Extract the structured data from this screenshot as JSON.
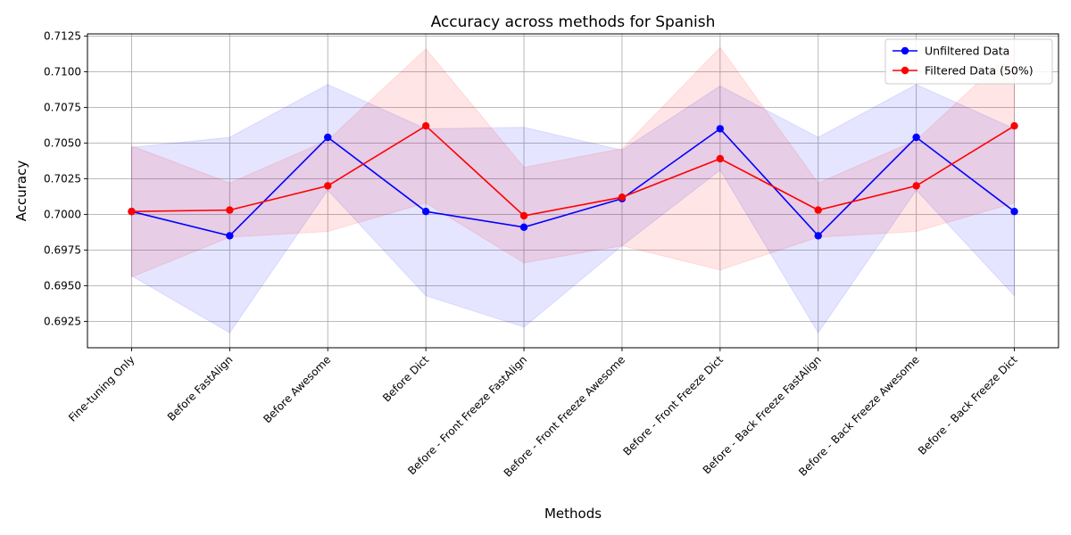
{
  "chart_data": {
    "type": "line",
    "title": "Accuracy across methods for Spanish",
    "xlabel": "Methods",
    "ylabel": "Accuracy",
    "categories": [
      "Fine-tuning Only",
      "Before FastAlign",
      "Before Awesome",
      "Before Dict",
      "Before - Front Freeze FastAlign",
      "Before - Front Freeze Awesome",
      "Before - Front Freeze Dict",
      "Before - Back Freeze FastAlign",
      "Before - Back Freeze Awesome",
      "Before - Back Freeze Dict"
    ],
    "ylim": [
      0.69065,
      0.71265
    ],
    "yticks": [
      0.6925,
      0.695,
      0.6975,
      0.7,
      0.7025,
      0.705,
      0.7075,
      0.71,
      0.7125
    ],
    "ytick_labels": [
      "0.6925",
      "0.6950",
      "0.6975",
      "0.7000",
      "0.7025",
      "0.7050",
      "0.7075",
      "0.7100",
      "0.7125"
    ],
    "grid": true,
    "legend_position": "top-right",
    "series": [
      {
        "name": "Unfiltered Data",
        "color": "#0000ff",
        "band_color": "#0000ff",
        "values": [
          0.7002,
          0.6985,
          0.7054,
          0.7002,
          0.6991,
          0.7011,
          0.706,
          0.6985,
          0.7054,
          0.7002
        ],
        "lower": [
          0.6957,
          0.6917,
          0.7017,
          0.6943,
          0.6921,
          0.6978,
          0.7031,
          0.6917,
          0.7017,
          0.6943
        ],
        "upper": [
          0.7047,
          0.7054,
          0.7091,
          0.706,
          0.7061,
          0.7045,
          0.709,
          0.7054,
          0.7091,
          0.706
        ]
      },
      {
        "name": "Filtered Data (50%)",
        "color": "#ff0000",
        "band_color": "#ff0000",
        "values": [
          0.7002,
          0.7003,
          0.702,
          0.7062,
          0.6999,
          0.7012,
          0.7039,
          0.7003,
          0.702,
          0.7062
        ],
        "lower": [
          0.6956,
          0.6984,
          0.6988,
          0.7008,
          0.6966,
          0.6978,
          0.6961,
          0.6984,
          0.6988,
          0.7008
        ],
        "upper": [
          0.7048,
          0.7022,
          0.7052,
          0.7116,
          0.7033,
          0.7046,
          0.7117,
          0.7022,
          0.7052,
          0.7116
        ]
      }
    ]
  }
}
